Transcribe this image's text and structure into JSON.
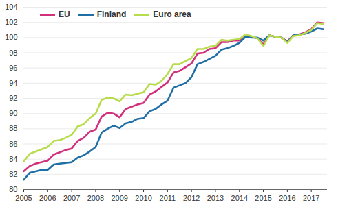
{
  "chart_data": {
    "type": "line",
    "x": [
      2005,
      2005.25,
      2005.5,
      2005.75,
      2006,
      2006.25,
      2006.5,
      2006.75,
      2007,
      2007.25,
      2007.5,
      2007.75,
      2008,
      2008.25,
      2008.5,
      2008.75,
      2009,
      2009.25,
      2009.5,
      2009.75,
      2010,
      2010.25,
      2010.5,
      2010.75,
      2011,
      2011.25,
      2011.5,
      2011.75,
      2012,
      2012.25,
      2012.5,
      2012.75,
      2013,
      2013.25,
      2013.5,
      2013.75,
      2014,
      2014.25,
      2014.5,
      2014.75,
      2015,
      2015.25,
      2015.5,
      2015.75,
      2016,
      2016.25,
      2016.5,
      2016.75,
      2017,
      2017.25,
      2017.5
    ],
    "series": [
      {
        "name": "EU",
        "color": "#d1307c",
        "values": [
          82.4,
          83.1,
          83.4,
          83.6,
          83.8,
          84.6,
          84.9,
          85.2,
          85.4,
          86.4,
          86.8,
          87.6,
          87.9,
          89.6,
          90.1,
          90.0,
          89.5,
          90.6,
          90.9,
          91.2,
          91.4,
          92.5,
          92.9,
          93.5,
          94.1,
          95.4,
          95.6,
          96.1,
          96.6,
          97.9,
          98.0,
          98.5,
          98.6,
          99.4,
          99.4,
          99.6,
          99.6,
          100.3,
          100.1,
          99.9,
          99.1,
          100.3,
          100.1,
          100.0,
          99.5,
          100.3,
          100.4,
          100.7,
          101.1,
          102.0,
          101.9
        ]
      },
      {
        "name": "Finland",
        "color": "#1f6fa6",
        "values": [
          81.3,
          82.2,
          82.4,
          82.6,
          82.6,
          83.3,
          83.4,
          83.5,
          83.6,
          84.2,
          84.5,
          85.0,
          85.6,
          87.5,
          88.0,
          88.4,
          88.1,
          88.7,
          88.9,
          89.3,
          89.4,
          90.3,
          90.6,
          91.2,
          91.7,
          93.4,
          93.7,
          94.0,
          94.8,
          96.5,
          96.8,
          97.2,
          97.6,
          98.4,
          98.6,
          98.9,
          99.3,
          100.1,
          100.0,
          100.0,
          99.6,
          100.3,
          100.1,
          100.0,
          99.4,
          100.3,
          100.4,
          100.5,
          100.8,
          101.2,
          101.1
        ]
      },
      {
        "name": "Euro area",
        "color": "#b7dc4c",
        "values": [
          83.7,
          84.7,
          85.0,
          85.3,
          85.6,
          86.4,
          86.5,
          86.8,
          87.2,
          88.3,
          88.6,
          89.4,
          90.0,
          91.8,
          92.1,
          92.0,
          91.6,
          92.5,
          92.4,
          92.6,
          92.8,
          93.9,
          93.8,
          94.3,
          95.2,
          96.5,
          96.5,
          96.9,
          97.3,
          98.5,
          98.5,
          98.8,
          98.9,
          99.7,
          99.6,
          99.7,
          99.8,
          100.4,
          100.2,
          99.9,
          98.9,
          100.3,
          100.1,
          100.0,
          99.3,
          100.2,
          100.3,
          100.6,
          101.0,
          101.9,
          101.8
        ]
      }
    ],
    "xlim": [
      2005,
      2017.67
    ],
    "xticks": [
      2005,
      2006,
      2007,
      2008,
      2009,
      2010,
      2011,
      2012,
      2013,
      2014,
      2015,
      2016,
      2017
    ],
    "ylim": [
      80,
      104
    ],
    "yticks": [
      80,
      82,
      84,
      86,
      88,
      90,
      92,
      94,
      96,
      98,
      100,
      102,
      104
    ],
    "grid": true,
    "legend": "top-left"
  }
}
